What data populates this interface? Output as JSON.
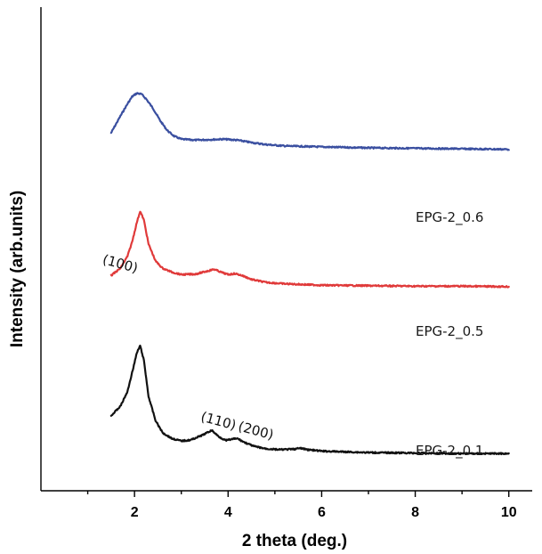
{
  "chart_data": {
    "type": "line",
    "xlabel": "2 theta (deg.)",
    "ylabel": "Intensity (arb.units)",
    "xlim": [
      0.0,
      10.5
    ],
    "x_ticks": [
      2,
      4,
      6,
      8,
      10
    ],
    "y_ticks_shown": false,
    "grid": false,
    "series": [
      {
        "name": "EPG-2_0.6",
        "color": "#3a4fa0",
        "x": [
          1.5,
          1.7,
          1.85,
          1.95,
          2.05,
          2.15,
          2.25,
          2.4,
          2.55,
          2.7,
          2.85,
          3.0,
          3.3,
          3.6,
          3.9,
          4.2,
          4.5,
          4.8,
          5.2,
          6.0,
          7.0,
          8.0,
          9.0,
          10.0
        ],
        "y": [
          0.74,
          0.775,
          0.8,
          0.815,
          0.822,
          0.82,
          0.81,
          0.79,
          0.765,
          0.745,
          0.733,
          0.727,
          0.725,
          0.726,
          0.727,
          0.725,
          0.72,
          0.716,
          0.713,
          0.711,
          0.709,
          0.708,
          0.707,
          0.706
        ]
      },
      {
        "name": "EPG-2_0.5",
        "color": "#e03a3a",
        "x": [
          1.5,
          1.7,
          1.85,
          1.95,
          2.05,
          2.12,
          2.2,
          2.3,
          2.45,
          2.6,
          2.8,
          3.0,
          3.3,
          3.55,
          3.7,
          3.85,
          4.0,
          4.15,
          4.3,
          4.5,
          4.8,
          5.2,
          6.0,
          7.0,
          8.0,
          9.0,
          10.0
        ],
        "y": [
          0.445,
          0.46,
          0.485,
          0.515,
          0.555,
          0.578,
          0.56,
          0.51,
          0.475,
          0.46,
          0.452,
          0.447,
          0.448,
          0.454,
          0.458,
          0.452,
          0.447,
          0.449,
          0.445,
          0.437,
          0.431,
          0.428,
          0.425,
          0.424,
          0.423,
          0.423,
          0.422
        ]
      },
      {
        "name": "EPG-2_0.1",
        "color": "#111111",
        "x": [
          1.5,
          1.7,
          1.85,
          1.95,
          2.05,
          2.12,
          2.2,
          2.3,
          2.45,
          2.6,
          2.8,
          3.0,
          3.2,
          3.45,
          3.65,
          3.8,
          3.95,
          4.1,
          4.2,
          4.35,
          4.55,
          4.8,
          5.1,
          5.4,
          5.55,
          5.7,
          6.0,
          7.0,
          8.0,
          9.0,
          10.0
        ],
        "y": [
          0.155,
          0.175,
          0.205,
          0.245,
          0.285,
          0.3,
          0.27,
          0.195,
          0.145,
          0.12,
          0.108,
          0.103,
          0.105,
          0.115,
          0.125,
          0.112,
          0.104,
          0.107,
          0.108,
          0.1,
          0.092,
          0.087,
          0.085,
          0.086,
          0.088,
          0.085,
          0.082,
          0.079,
          0.078,
          0.077,
          0.077
        ]
      }
    ],
    "series_labels": [
      "EPG-2_0.6",
      "EPG-2_0.5",
      "EPG-2_0.1"
    ],
    "annotations": [
      {
        "text": "(100)",
        "x": 1.3,
        "y": 0.47,
        "rotate": 15
      },
      {
        "text": "(110)",
        "x": 3.4,
        "y": 0.145,
        "rotate": 15
      },
      {
        "text": "(200)",
        "x": 4.2,
        "y": 0.125,
        "rotate": 15
      }
    ]
  }
}
